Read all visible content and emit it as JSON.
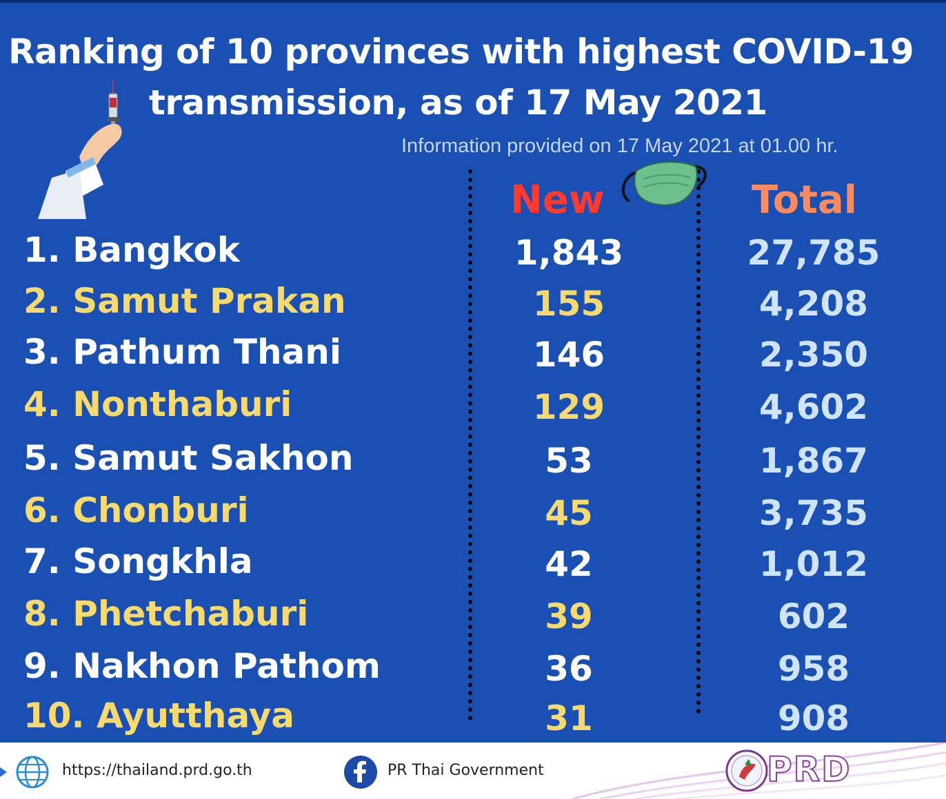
{
  "title": {
    "line1": "Ranking of 10 provinces with highest COVID-19",
    "line2": "transmission, as of 17 May 2021"
  },
  "subtitle": "Information provided on 17 May 2021 at 01.00 hr.",
  "headers": {
    "new": "New",
    "total": "Total"
  },
  "rows": [
    {
      "province": "1. Bangkok",
      "new": "1,843",
      "total": "27,785"
    },
    {
      "province": "2. Samut Prakan",
      "new": "155",
      "total": "4,208"
    },
    {
      "province": "3. Pathum Thani",
      "new": "146",
      "total": "2,350"
    },
    {
      "province": "4. Nonthaburi",
      "new": "129",
      "total": "4,602"
    },
    {
      "province": "5. Samut Sakhon",
      "new": "53",
      "total": "1,867"
    },
    {
      "province": "6. Chonburi",
      "new": "45",
      "total": "3,735"
    },
    {
      "province": "7. Songkhla",
      "new": "42",
      "total": "1,012"
    },
    {
      "province": "8. Phetchaburi",
      "new": "39",
      "total": "602"
    },
    {
      "province": "9. Nakhon Pathom",
      "new": "36",
      "total": "958"
    },
    {
      "province": "10. Ayutthaya",
      "new": "31",
      "total": "908"
    }
  ],
  "footer": {
    "website": "https://thailand.prd.go.th",
    "facebook": "PR Thai Government",
    "logo_text": "PRD"
  },
  "colors": {
    "background": "#1a4fb4",
    "header_new": "#ff3b2f",
    "header_total": "#ff8a5c",
    "odd_rows": "#ffffff",
    "even_rows": "#f7da6b",
    "total_values": "#cfe4fb"
  }
}
